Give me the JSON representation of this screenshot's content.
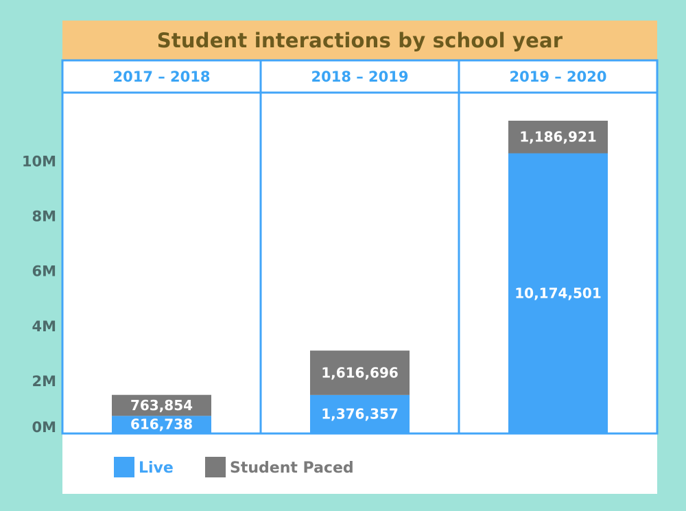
{
  "title": "Student interactions by school year",
  "chart_data": {
    "type": "bar",
    "stacked": true,
    "title": "Student interactions by school year",
    "categories": [
      "2017 – 2018",
      "2018 – 2019",
      "2019 – 2020"
    ],
    "series": [
      {
        "name": "Live",
        "color": "#42a5f8",
        "values": [
          616738,
          1376357,
          10174501
        ],
        "labels": [
          "616,738",
          "1,376,357",
          "10,174,501"
        ]
      },
      {
        "name": "Student Paced",
        "color": "#7a7a7a",
        "values": [
          763854,
          1616696,
          1186921
        ],
        "labels": [
          "763,854",
          "1,616,696",
          "1,186,921"
        ]
      }
    ],
    "yticks": [
      {
        "value": 0,
        "label": "0M"
      },
      {
        "value": 2000000,
        "label": "2M"
      },
      {
        "value": 4000000,
        "label": "4M"
      },
      {
        "value": 6000000,
        "label": "6M"
      },
      {
        "value": 8000000,
        "label": "8M"
      },
      {
        "value": 10000000,
        "label": "10M"
      }
    ],
    "ylim": [
      0,
      12000000
    ],
    "legend_position": "bottom-left",
    "grid": false
  }
}
